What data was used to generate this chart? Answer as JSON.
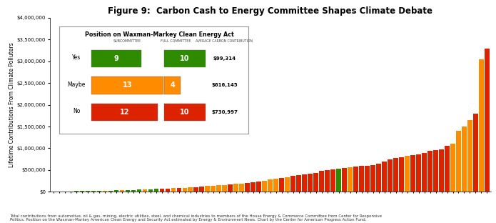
{
  "title": "Figure 9:  Carbon Cash to Energy Committee Shapes Climate Debate",
  "ylabel": "Lifetime Contributions From Climate Polluters",
  "ylim": [
    0,
    4000000
  ],
  "yticks": [
    0,
    500000,
    1000000,
    1500000,
    2000000,
    2500000,
    3000000,
    3500000,
    4000000
  ],
  "ytick_labels": [
    "$0",
    "$500,000",
    "$1,000,000",
    "$1,500,000",
    "$2,000,000",
    "$2,500,000",
    "$3,000,000",
    "$3,500,000",
    "$4,000,000"
  ],
  "footnote": "Total contributions from automotive, oil & gas, mining, electric utilities, steel, and chemical industries to members of the House Energy & Commerce Committee from Center for Responsive\nPolitics. Position on the Waxman-Markey American Clean Energy and Security Act estimated by Energy & Environment News. Chart by the Center for American Progress Action Fund.",
  "bar_values": [
    5000,
    8000,
    10000,
    12000,
    14000,
    16000,
    18000,
    20000,
    22000,
    25000,
    28000,
    30000,
    35000,
    38000,
    42000,
    50000,
    55000,
    60000,
    65000,
    70000,
    75000,
    80000,
    85000,
    90000,
    100000,
    110000,
    120000,
    130000,
    140000,
    150000,
    160000,
    170000,
    180000,
    190000,
    200000,
    220000,
    240000,
    260000,
    280000,
    300000,
    320000,
    340000,
    360000,
    380000,
    400000,
    420000,
    440000,
    480000,
    500000,
    520000,
    530000,
    540000,
    560000,
    580000,
    590000,
    600000,
    610000,
    650000,
    700000,
    750000,
    780000,
    800000,
    820000,
    840000,
    860000,
    900000,
    940000,
    960000,
    980000,
    1050000,
    1100000,
    1400000,
    1500000,
    1650000,
    1800000,
    3050000,
    3300000
  ],
  "bar_colors": [
    "#2e8b00",
    "#2e8b00",
    "#2e8b00",
    "#2e8b00",
    "#2e8b00",
    "#2e8b00",
    "#2e8b00",
    "#2e8b00",
    "#2e8b00",
    "#ff8c00",
    "#2e8b00",
    "#2e8b00",
    "#ff8c00",
    "#2e8b00",
    "#2e8b00",
    "#2e8b00",
    "#ff8c00",
    "#2e8b00",
    "#2e8b00",
    "#dd2200",
    "#dd2200",
    "#ff8c00",
    "#dd2200",
    "#ff8c00",
    "#ff8c00",
    "#dd2200",
    "#dd2200",
    "#ff8c00",
    "#ff8c00",
    "#ff8c00",
    "#ff8c00",
    "#dd2200",
    "#ff8c00",
    "#ff8c00",
    "#dd2200",
    "#dd2200",
    "#dd2200",
    "#ff8c00",
    "#ff8c00",
    "#ff8c00",
    "#dd2200",
    "#ff8c00",
    "#dd2200",
    "#dd2200",
    "#dd2200",
    "#dd2200",
    "#dd2200",
    "#dd2200",
    "#dd2200",
    "#dd2200",
    "#2e8b00",
    "#dd2200",
    "#ff8c00",
    "#dd2200",
    "#dd2200",
    "#dd2200",
    "#dd2200",
    "#dd2200",
    "#dd2200",
    "#dd2200",
    "#dd2200",
    "#dd2200",
    "#ff8c00",
    "#dd2200",
    "#dd2200",
    "#dd2200",
    "#dd2200",
    "#dd2200",
    "#dd2200",
    "#dd2200",
    "#ff8c00",
    "#ff8c00",
    "#ff8c00",
    "#ff8c00",
    "#dd2200",
    "#ff8c00",
    "#dd2200"
  ],
  "inset": {
    "title": "Position on Waxman-Markey Clean Energy Act",
    "col1": "SUBCOMMITTEE",
    "col2": "FULL COMMITTEE",
    "col3": "AVERAGE CARBON CONTRIBUTION",
    "rows": [
      {
        "label": "Yes",
        "sub": 9,
        "full": 10,
        "avg": "$99,314",
        "color": "#2e8b00"
      },
      {
        "label": "Maybe",
        "sub": 13,
        "full": 4,
        "avg": "$616,145",
        "color": "#ff8c00"
      },
      {
        "label": "No",
        "sub": 12,
        "full": 10,
        "avg": "$730,997",
        "color": "#dd2200"
      }
    ]
  },
  "green": "#2e8b00",
  "orange": "#ff8c00",
  "red": "#dd2200",
  "background": "#ffffff"
}
